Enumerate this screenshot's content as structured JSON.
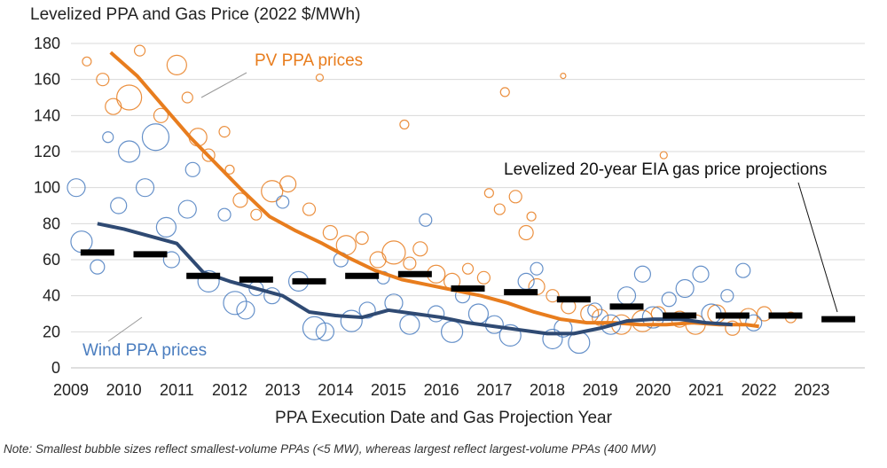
{
  "chart_data": {
    "type": "scatter",
    "title": "Levelized PPA and Gas Price (2022 $/MWh)",
    "xlabel": "PPA Execution Date and Gas Projection Year",
    "ylabel": "",
    "xlim": [
      2009,
      2024
    ],
    "ylim": [
      0,
      180
    ],
    "x_ticks": [
      "2009",
      "2010",
      "2011",
      "2012",
      "2013",
      "2014",
      "2015",
      "2016",
      "2017",
      "2018",
      "2019",
      "2020",
      "2021",
      "2022",
      "2023"
    ],
    "y_ticks": [
      "0",
      "20",
      "40",
      "60",
      "80",
      "100",
      "120",
      "140",
      "160",
      "180"
    ],
    "grid": true,
    "colors": {
      "pv": "#e87d1e",
      "wind": "#4a7dbf",
      "wind_trend": "#2f4a73",
      "gas": "#000000",
      "grid": "#d9d9d9"
    },
    "annotations": {
      "pv": "PV PPA prices",
      "wind": "Wind PPA prices",
      "gas": "Levelized 20-year EIA gas price projections"
    },
    "note": "Note: Smallest bubble sizes reflect smallest-volume PPAs (<5 MW), whereas largest reflect largest-volume PPAs (400 MW)",
    "series": [
      {
        "name": "PV PPA prices",
        "kind": "trend",
        "x": [
          2009.75,
          2010.25,
          2010.75,
          2011.25,
          2011.75,
          2012.25,
          2012.75,
          2013.25,
          2013.75,
          2014.25,
          2014.75,
          2015.25,
          2015.75,
          2016.25,
          2016.75,
          2017.25,
          2017.75,
          2018.25,
          2018.75,
          2019.25,
          2019.75,
          2020.25,
          2020.75,
          2021.25,
          2021.75,
          2022.0
        ],
        "y": [
          175,
          162,
          145,
          128,
          113,
          98,
          84,
          76,
          69,
          61,
          54,
          49,
          46,
          43,
          40,
          36,
          31,
          27,
          25,
          25,
          24,
          24,
          25,
          24,
          24,
          23
        ]
      },
      {
        "name": "Wind PPA prices",
        "kind": "trend",
        "x": [
          2009.5,
          2010.0,
          2010.5,
          2011.0,
          2011.5,
          2012.0,
          2012.5,
          2013.0,
          2013.5,
          2014.0,
          2014.5,
          2015.0,
          2015.5,
          2016.0,
          2016.5,
          2017.0,
          2017.5,
          2018.0,
          2018.5,
          2019.0,
          2019.5,
          2020.0,
          2020.5,
          2021.0,
          2021.5
        ],
        "y": [
          80,
          77,
          73,
          69,
          53,
          48,
          44,
          40,
          31,
          29,
          28,
          32,
          30,
          28,
          25,
          23,
          21,
          19,
          19,
          22,
          26,
          27,
          27,
          25,
          24
        ]
      },
      {
        "name": "Levelized 20-year EIA gas price projections",
        "kind": "dashes",
        "x": [
          2009.5,
          2010.5,
          2011.5,
          2012.5,
          2013.5,
          2014.5,
          2015.5,
          2016.5,
          2017.5,
          2018.5,
          2019.5,
          2020.5,
          2021.5,
          2022.5,
          2023.5
        ],
        "y": [
          64,
          63,
          51,
          49,
          48,
          51,
          52,
          44,
          42,
          38,
          34,
          29,
          29,
          29,
          27
        ]
      }
    ],
    "bubbles": {
      "pv": [
        [
          2009.3,
          170,
          5
        ],
        [
          2009.6,
          160,
          7
        ],
        [
          2009.8,
          145,
          9
        ],
        [
          2010.1,
          150,
          14
        ],
        [
          2010.3,
          176,
          6
        ],
        [
          2010.7,
          140,
          8
        ],
        [
          2011.0,
          168,
          11
        ],
        [
          2011.2,
          150,
          6
        ],
        [
          2011.4,
          128,
          10
        ],
        [
          2011.6,
          118,
          7
        ],
        [
          2011.9,
          131,
          6
        ],
        [
          2012.0,
          110,
          5
        ],
        [
          2012.2,
          93,
          8
        ],
        [
          2012.5,
          85,
          6
        ],
        [
          2012.8,
          98,
          12
        ],
        [
          2013.1,
          102,
          9
        ],
        [
          2013.5,
          88,
          7
        ],
        [
          2013.7,
          161,
          4
        ],
        [
          2013.9,
          75,
          8
        ],
        [
          2014.2,
          68,
          11
        ],
        [
          2014.5,
          72,
          7
        ],
        [
          2014.8,
          60,
          9
        ],
        [
          2015.1,
          64,
          13
        ],
        [
          2015.3,
          135,
          5
        ],
        [
          2015.4,
          58,
          7
        ],
        [
          2015.6,
          66,
          8
        ],
        [
          2015.9,
          52,
          10
        ],
        [
          2016.2,
          48,
          9
        ],
        [
          2016.5,
          55,
          6
        ],
        [
          2016.8,
          50,
          7
        ],
        [
          2016.9,
          97,
          5
        ],
        [
          2017.1,
          88,
          6
        ],
        [
          2017.2,
          153,
          5
        ],
        [
          2017.4,
          95,
          7
        ],
        [
          2017.6,
          75,
          8
        ],
        [
          2017.7,
          84,
          5
        ],
        [
          2017.8,
          45,
          9
        ],
        [
          2018.1,
          40,
          7
        ],
        [
          2018.3,
          162,
          3
        ],
        [
          2018.4,
          34,
          8
        ],
        [
          2018.8,
          30,
          10
        ],
        [
          2019.0,
          28,
          9
        ],
        [
          2019.4,
          24,
          11
        ],
        [
          2019.8,
          26,
          12
        ],
        [
          2020.1,
          30,
          8
        ],
        [
          2020.2,
          118,
          4
        ],
        [
          2020.5,
          27,
          9
        ],
        [
          2020.8,
          24,
          11
        ],
        [
          2021.2,
          30,
          10
        ],
        [
          2021.5,
          22,
          8
        ],
        [
          2021.8,
          28,
          10
        ],
        [
          2022.1,
          30,
          8
        ],
        [
          2022.6,
          28,
          6
        ]
      ],
      "wind": [
        [
          2009.1,
          100,
          10
        ],
        [
          2009.2,
          70,
          12
        ],
        [
          2009.5,
          56,
          8
        ],
        [
          2009.7,
          128,
          6
        ],
        [
          2009.9,
          90,
          9
        ],
        [
          2010.1,
          120,
          12
        ],
        [
          2010.4,
          100,
          10
        ],
        [
          2010.6,
          128,
          15
        ],
        [
          2010.8,
          78,
          11
        ],
        [
          2010.9,
          60,
          9
        ],
        [
          2011.2,
          88,
          10
        ],
        [
          2011.3,
          110,
          8
        ],
        [
          2011.6,
          48,
          12
        ],
        [
          2011.9,
          85,
          7
        ],
        [
          2012.1,
          36,
          13
        ],
        [
          2012.3,
          32,
          10
        ],
        [
          2012.5,
          44,
          8
        ],
        [
          2012.8,
          40,
          9
        ],
        [
          2013.0,
          92,
          7
        ],
        [
          2013.3,
          48,
          11
        ],
        [
          2013.6,
          22,
          13
        ],
        [
          2013.8,
          20,
          10
        ],
        [
          2014.1,
          60,
          8
        ],
        [
          2014.3,
          26,
          12
        ],
        [
          2014.6,
          32,
          9
        ],
        [
          2014.9,
          50,
          7
        ],
        [
          2015.1,
          36,
          10
        ],
        [
          2015.4,
          24,
          11
        ],
        [
          2015.7,
          82,
          7
        ],
        [
          2015.9,
          30,
          9
        ],
        [
          2016.2,
          20,
          12
        ],
        [
          2016.4,
          40,
          8
        ],
        [
          2016.7,
          30,
          11
        ],
        [
          2017.0,
          24,
          10
        ],
        [
          2017.3,
          18,
          12
        ],
        [
          2017.6,
          48,
          9
        ],
        [
          2017.8,
          55,
          7
        ],
        [
          2018.1,
          16,
          11
        ],
        [
          2018.3,
          22,
          10
        ],
        [
          2018.6,
          14,
          12
        ],
        [
          2018.9,
          32,
          8
        ],
        [
          2019.2,
          24,
          11
        ],
        [
          2019.5,
          40,
          10
        ],
        [
          2019.8,
          52,
          9
        ],
        [
          2020.0,
          28,
          12
        ],
        [
          2020.3,
          38,
          8
        ],
        [
          2020.6,
          44,
          10
        ],
        [
          2020.9,
          52,
          9
        ],
        [
          2021.1,
          30,
          11
        ],
        [
          2021.4,
          40,
          7
        ],
        [
          2021.7,
          54,
          8
        ],
        [
          2021.9,
          25,
          9
        ]
      ]
    }
  }
}
